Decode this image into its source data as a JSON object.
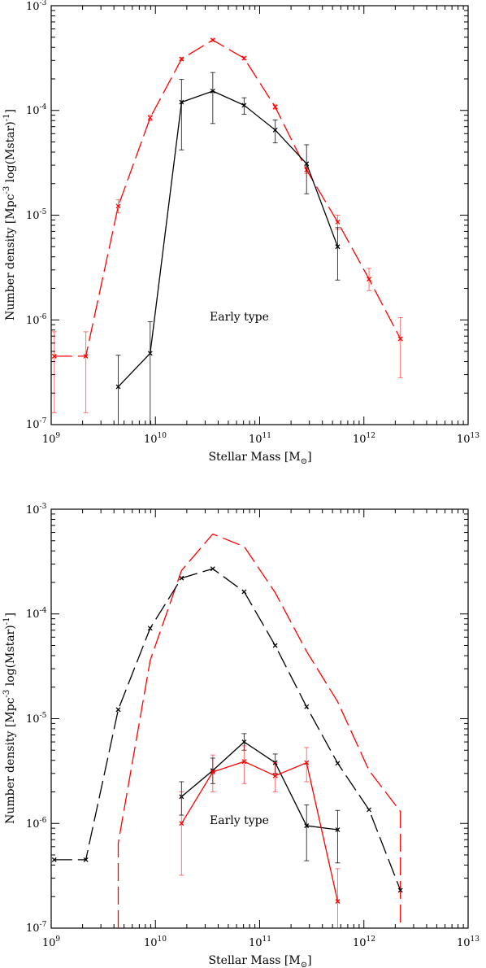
{
  "chart_data": [
    {
      "type": "line",
      "annotation": "Early type",
      "xlabel": "Stellar Mass [M",
      "xlabel_sub": "⊙",
      "xlabel_end": "]",
      "ylabel": "Number density [Mpc",
      "ylabel_sup": "-3",
      "ylabel_end": " log(Mstar)",
      "ylabel_sup2": "-1",
      "ylabel_close": "]",
      "xscale": "log",
      "yscale": "log",
      "xlim": [
        1000000000.0,
        10000000000000.0
      ],
      "ylim": [
        1e-07,
        0.001
      ],
      "x_ticks": [
        {
          "mant": "10",
          "exp": "9"
        },
        {
          "mant": "10",
          "exp": "10"
        },
        {
          "mant": "10",
          "exp": "11"
        },
        {
          "mant": "10",
          "exp": "12"
        },
        {
          "mant": "10",
          "exp": "13"
        }
      ],
      "y_ticks": [
        {
          "mant": "10",
          "exp": "-7"
        },
        {
          "mant": "10",
          "exp": "-6"
        },
        {
          "mant": "10",
          "exp": "-5"
        },
        {
          "mant": "10",
          "exp": "-4"
        },
        {
          "mant": "10",
          "exp": "-3"
        }
      ],
      "series": [
        {
          "color": "#ff0000",
          "dash": "long-dash",
          "markers": true,
          "points": [
            {
              "x": 1070000000.0,
              "y": 4.5e-07,
              "lo": 1.3e-07,
              "hi": 7.7e-07
            },
            {
              "x": 2150000000.0,
              "y": 4.5e-07,
              "lo": 1.3e-07,
              "hi": 7.7e-07
            },
            {
              "x": 4400000000.0,
              "y": 1.22e-05,
              "lo": 1.05e-05,
              "hi": 1.4e-05
            },
            {
              "x": 8900000000.0,
              "y": 8.5e-05,
              "lo": 8e-05,
              "hi": 9e-05
            },
            {
              "x": 17800000000.0,
              "y": 0.00031,
              "lo": 0.0003,
              "hi": 0.00032
            },
            {
              "x": 35500000000.0,
              "y": 0.00047,
              "lo": 0.00046,
              "hi": 0.00048
            },
            {
              "x": 71000000000.0,
              "y": 0.000315,
              "lo": 0.000305,
              "hi": 0.000325
            },
            {
              "x": 141000000000.0,
              "y": 0.000108,
              "lo": 0.000103,
              "hi": 0.000113
            },
            {
              "x": 282000000000.0,
              "y": 2.7e-05,
              "lo": 2.5e-05,
              "hi": 2.9e-05
            },
            {
              "x": 560000000000.0,
              "y": 8.6e-06,
              "lo": 7.3e-06,
              "hi": 1e-05
            },
            {
              "x": 1120000000000.0,
              "y": 2.45e-06,
              "lo": 1.9e-06,
              "hi": 3.1e-06
            },
            {
              "x": 2240000000000.0,
              "y": 6.6e-07,
              "lo": 2.8e-07,
              "hi": 1.05e-06
            }
          ]
        },
        {
          "color": "#000000",
          "dash": "solid",
          "markers": true,
          "points": [
            {
              "x": 4400000000.0,
              "y": 2.3e-07,
              "lo": 1e-07,
              "hi": 4.6e-07
            },
            {
              "x": 8900000000.0,
              "y": 4.8e-07,
              "lo": 1e-07,
              "hi": 9.6e-07
            },
            {
              "x": 17800000000.0,
              "y": 0.00012,
              "lo": 4.2e-05,
              "hi": 0.000198
            },
            {
              "x": 35500000000.0,
              "y": 0.000153,
              "lo": 7.5e-05,
              "hi": 0.00023
            },
            {
              "x": 71000000000.0,
              "y": 0.000112,
              "lo": 9.2e-05,
              "hi": 0.000132
            },
            {
              "x": 141000000000.0,
              "y": 6.5e-05,
              "lo": 4.9e-05,
              "hi": 8.1e-05
            },
            {
              "x": 282000000000.0,
              "y": 3.1e-05,
              "lo": 1.6e-05,
              "hi": 4.7e-05
            },
            {
              "x": 560000000000.0,
              "y": 5e-06,
              "lo": 2.4e-06,
              "hi": 7.6e-06
            }
          ]
        }
      ]
    },
    {
      "type": "line",
      "annotation": "Early type",
      "xlabel": "Stellar Mass [M",
      "xlabel_sub": "⊙",
      "xlabel_end": "]",
      "ylabel": "Number density [Mpc",
      "ylabel_sup": "-3",
      "ylabel_end": " log(Mstar)",
      "ylabel_sup2": "-1",
      "ylabel_close": "]",
      "xscale": "log",
      "yscale": "log",
      "xlim": [
        1000000000.0,
        10000000000000.0
      ],
      "ylim": [
        1e-07,
        0.001
      ],
      "x_ticks": [
        {
          "mant": "10",
          "exp": "9"
        },
        {
          "mant": "10",
          "exp": "10"
        },
        {
          "mant": "10",
          "exp": "11"
        },
        {
          "mant": "10",
          "exp": "12"
        },
        {
          "mant": "10",
          "exp": "13"
        }
      ],
      "y_ticks": [
        {
          "mant": "10",
          "exp": "-7"
        },
        {
          "mant": "10",
          "exp": "-6"
        },
        {
          "mant": "10",
          "exp": "-5"
        },
        {
          "mant": "10",
          "exp": "-4"
        },
        {
          "mant": "10",
          "exp": "-3"
        }
      ],
      "series": [
        {
          "color": "#ff0000",
          "dash": "long-dash",
          "markers": false,
          "points": [
            {
              "x": 4400000000.0,
              "y": 1e-07
            },
            {
              "x": 4400000000.0,
              "y": 6.5e-07
            },
            {
              "x": 8900000000.0,
              "y": 3.6e-05
            },
            {
              "x": 17800000000.0,
              "y": 0.00026
            },
            {
              "x": 35500000000.0,
              "y": 0.00058
            },
            {
              "x": 71000000000.0,
              "y": 0.00044
            },
            {
              "x": 141000000000.0,
              "y": 0.00016
            },
            {
              "x": 282000000000.0,
              "y": 4.4e-05
            },
            {
              "x": 560000000000.0,
              "y": 1.45e-05
            },
            {
              "x": 1120000000000.0,
              "y": 3.2e-06
            },
            {
              "x": 2240000000000.0,
              "y": 1.3e-06
            },
            {
              "x": 2240000000000.0,
              "y": 1e-07
            }
          ]
        },
        {
          "color": "#000000",
          "dash": "long-dash",
          "markers": true,
          "points": [
            {
              "x": 1070000000.0,
              "y": 4.5e-07
            },
            {
              "x": 2150000000.0,
              "y": 4.5e-07
            },
            {
              "x": 4400000000.0,
              "y": 1.22e-05
            },
            {
              "x": 8900000000.0,
              "y": 7.3e-05
            },
            {
              "x": 17800000000.0,
              "y": 0.00022
            },
            {
              "x": 35500000000.0,
              "y": 0.00027
            },
            {
              "x": 71000000000.0,
              "y": 0.000163
            },
            {
              "x": 141000000000.0,
              "y": 5e-05
            },
            {
              "x": 282000000000.0,
              "y": 1.3e-05
            },
            {
              "x": 560000000000.0,
              "y": 3.75e-06
            },
            {
              "x": 1120000000000.0,
              "y": 1.35e-06
            },
            {
              "x": 2240000000000.0,
              "y": 2.3e-07
            }
          ]
        },
        {
          "color": "#000000",
          "dash": "solid",
          "markers": true,
          "points": [
            {
              "x": 17800000000.0,
              "y": 1.8e-06,
              "lo": 1.2e-06,
              "hi": 2.5e-06
            },
            {
              "x": 35500000000.0,
              "y": 3.2e-06,
              "lo": 2.4e-06,
              "hi": 4.2e-06
            },
            {
              "x": 71000000000.0,
              "y": 6e-06,
              "lo": 5e-06,
              "hi": 7.2e-06
            },
            {
              "x": 141000000000.0,
              "y": 3.8e-06,
              "lo": 3e-06,
              "hi": 4.6e-06
            },
            {
              "x": 282000000000.0,
              "y": 9.5e-07,
              "lo": 4.4e-07,
              "hi": 1.5e-06
            },
            {
              "x": 560000000000.0,
              "y": 8.7e-07,
              "lo": 4.2e-07,
              "hi": 1.33e-06
            }
          ]
        },
        {
          "color": "#ff0000",
          "dash": "solid",
          "markers": true,
          "points": [
            {
              "x": 17800000000.0,
              "y": 1e-06,
              "lo": 3.2e-07,
              "hi": 2e-06
            },
            {
              "x": 35500000000.0,
              "y": 3.1e-06,
              "lo": 2e-06,
              "hi": 4.5e-06
            },
            {
              "x": 71000000000.0,
              "y": 3.9e-06,
              "lo": 2.4e-06,
              "hi": 5.5e-06
            },
            {
              "x": 141000000000.0,
              "y": 2.85e-06,
              "lo": 2e-06,
              "hi": 3.8e-06
            },
            {
              "x": 282000000000.0,
              "y": 3.8e-06,
              "lo": 2.5e-06,
              "hi": 5.3e-06
            },
            {
              "x": 560000000000.0,
              "y": 1.8e-07,
              "lo": 1e-07,
              "hi": 3.7e-07
            }
          ]
        }
      ]
    }
  ]
}
